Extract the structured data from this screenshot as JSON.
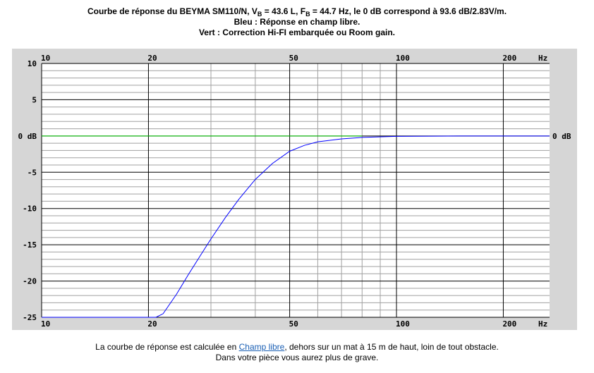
{
  "header": {
    "line1_prefix": "Courbe de réponse du BEYMA SM110/N, V",
    "line1_vb_sub": "B",
    "line1_vb_val": " = 43.6 L, F",
    "line1_fb_sub": "B",
    "line1_rest": " = 44.7 Hz, le 0 dB correspond à 93.6 dB/2.83V/m.",
    "line2": "Bleu : Réponse en champ libre.",
    "line3": "Vert : Correction Hi-FI embarquée ou Room gain."
  },
  "footer": {
    "line1_before": "La courbe de réponse est calculée en ",
    "line1_link": "Champ libre",
    "line1_after": ", dehors sur un mat à 15 m de haut, loin de tout obstacle.",
    "line2": "Dans votre pièce vous aurez plus de grave."
  },
  "chart_data": {
    "type": "line",
    "x_scale": "log",
    "xlim": [
      10,
      270
    ],
    "ylim": [
      -25,
      10
    ],
    "grid": true,
    "x_ticks": [
      {
        "value": 10,
        "label": "10"
      },
      {
        "value": 20,
        "label": "20"
      },
      {
        "value": 50,
        "label": "50"
      },
      {
        "value": 100,
        "label": "100"
      },
      {
        "value": 200,
        "label": "200"
      }
    ],
    "x_unit_label": "Hz",
    "y_ticks": [
      {
        "value": 10,
        "label": "10"
      },
      {
        "value": 5,
        "label": "5"
      },
      {
        "value": 0,
        "label": "0 dB"
      },
      {
        "value": -5,
        "label": "-5"
      },
      {
        "value": -10,
        "label": "-10"
      },
      {
        "value": -15,
        "label": "-15"
      },
      {
        "value": -20,
        "label": "-20"
      },
      {
        "value": -25,
        "label": "-25"
      }
    ],
    "right_label": {
      "value": 0,
      "label": "0 dB"
    },
    "series": [
      {
        "color": "#0000ff",
        "x": [
          10,
          21,
          22,
          24,
          26,
          28,
          30,
          33,
          36,
          40,
          44.7,
          50,
          55,
          60,
          70,
          80,
          100,
          150,
          270
        ],
        "y": [
          -25,
          -25,
          -24.5,
          -21.8,
          -19.0,
          -16.5,
          -14.2,
          -11.2,
          -8.7,
          -6.0,
          -3.8,
          -2.1,
          -1.3,
          -0.8,
          -0.4,
          -0.2,
          -0.05,
          0,
          0
        ]
      },
      {
        "color": "#00cc00",
        "x": [
          10,
          80
        ],
        "y": [
          0,
          0
        ]
      }
    ],
    "colors": {
      "panel_bg": "#d6d6d6",
      "plot_bg": "#ffffff",
      "major_grid": "#000000",
      "minor_grid": "#a0a0a0"
    }
  }
}
